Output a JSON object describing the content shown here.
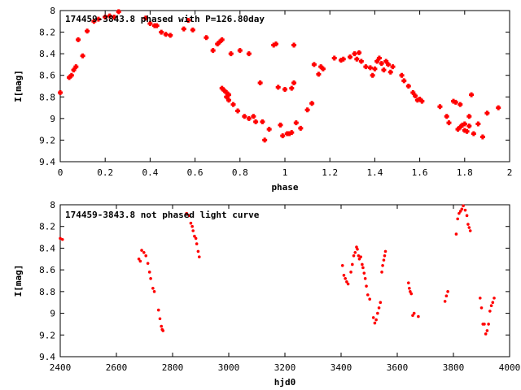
{
  "chart_data": [
    {
      "type": "scatter",
      "title": "174459-3843.8 phased with P=126.80day",
      "xlabel": "phase",
      "ylabel": "I[mag]",
      "xlim": [
        0,
        2
      ],
      "ylim": [
        9.4,
        8
      ],
      "y_inverted": true,
      "grid": false,
      "x_ticks": [
        0,
        0.2,
        0.4,
        0.6,
        0.8,
        1,
        1.2,
        1.4,
        1.6,
        1.8,
        2
      ],
      "x_tick_labels": [
        "0",
        "0.2",
        "0.4",
        "0.6",
        "0.8",
        "1",
        "1.2",
        "1.4",
        "1.6",
        "1.8",
        "2"
      ],
      "y_ticks": [
        8,
        8.2,
        8.4,
        8.6,
        8.8,
        9,
        9.2,
        9.4
      ],
      "y_tick_labels": [
        "8",
        "8.2",
        "8.4",
        "8.6",
        "8.8",
        "9",
        "9.2",
        "9.4"
      ],
      "marker_color": "#ff0000",
      "marker": "plus",
      "points": [
        [
          0.0,
          8.76
        ],
        [
          0.04,
          8.62
        ],
        [
          0.05,
          8.6
        ],
        [
          0.06,
          8.55
        ],
        [
          0.07,
          8.52
        ],
        [
          0.08,
          8.27
        ],
        [
          0.1,
          8.42
        ],
        [
          0.12,
          8.19
        ],
        [
          0.15,
          8.1
        ],
        [
          0.17,
          8.08
        ],
        [
          0.2,
          8.06
        ],
        [
          0.22,
          8.05
        ],
        [
          0.24,
          8.06
        ],
        [
          0.26,
          8.01
        ],
        [
          0.38,
          8.07
        ],
        [
          0.4,
          8.12
        ],
        [
          0.42,
          8.14
        ],
        [
          0.43,
          8.14
        ],
        [
          0.45,
          8.2
        ],
        [
          0.47,
          8.22
        ],
        [
          0.49,
          8.23
        ],
        [
          0.55,
          8.17
        ],
        [
          0.57,
          8.09
        ],
        [
          0.59,
          8.18
        ],
        [
          0.65,
          8.25
        ],
        [
          0.68,
          8.37
        ],
        [
          0.7,
          8.31
        ],
        [
          0.71,
          8.29
        ],
        [
          0.72,
          8.27
        ],
        [
          0.72,
          8.72
        ],
        [
          0.73,
          8.74
        ],
        [
          0.74,
          8.76
        ],
        [
          0.74,
          8.8
        ],
        [
          0.75,
          8.78
        ],
        [
          0.75,
          8.83
        ],
        [
          0.76,
          8.4
        ],
        [
          0.77,
          8.87
        ],
        [
          0.79,
          8.93
        ],
        [
          0.8,
          8.37
        ],
        [
          0.82,
          8.98
        ],
        [
          0.84,
          8.4
        ],
        [
          0.84,
          9.0
        ],
        [
          0.86,
          8.98
        ],
        [
          0.87,
          9.03
        ],
        [
          0.89,
          8.67
        ],
        [
          0.9,
          9.03
        ],
        [
          0.91,
          9.2
        ],
        [
          0.93,
          9.1
        ],
        [
          0.95,
          8.32
        ],
        [
          0.96,
          8.31
        ],
        [
          0.97,
          8.71
        ],
        [
          0.98,
          9.06
        ],
        [
          0.99,
          9.16
        ],
        [
          1.0,
          8.73
        ],
        [
          1.01,
          9.14
        ],
        [
          1.02,
          9.14
        ],
        [
          1.03,
          9.13
        ],
        [
          1.03,
          8.72
        ],
        [
          1.04,
          8.67
        ],
        [
          1.04,
          8.32
        ],
        [
          1.05,
          9.04
        ],
        [
          1.07,
          9.09
        ],
        [
          1.1,
          8.92
        ],
        [
          1.12,
          8.86
        ],
        [
          1.13,
          8.5
        ],
        [
          1.15,
          8.59
        ],
        [
          1.16,
          8.52
        ],
        [
          1.17,
          8.54
        ],
        [
          1.22,
          8.44
        ],
        [
          1.25,
          8.46
        ],
        [
          1.26,
          8.45
        ],
        [
          1.29,
          8.43
        ],
        [
          1.31,
          8.4
        ],
        [
          1.32,
          8.45
        ],
        [
          1.33,
          8.39
        ],
        [
          1.34,
          8.47
        ],
        [
          1.36,
          8.52
        ],
        [
          1.38,
          8.53
        ],
        [
          1.39,
          8.6
        ],
        [
          1.4,
          8.54
        ],
        [
          1.41,
          8.47
        ],
        [
          1.42,
          8.44
        ],
        [
          1.43,
          8.49
        ],
        [
          1.44,
          8.55
        ],
        [
          1.45,
          8.47
        ],
        [
          1.46,
          8.5
        ],
        [
          1.47,
          8.57
        ],
        [
          1.48,
          8.52
        ],
        [
          1.52,
          8.6
        ],
        [
          1.53,
          8.65
        ],
        [
          1.55,
          8.7
        ],
        [
          1.57,
          8.76
        ],
        [
          1.58,
          8.79
        ],
        [
          1.59,
          8.83
        ],
        [
          1.6,
          8.82
        ],
        [
          1.61,
          8.84
        ],
        [
          1.69,
          8.89
        ],
        [
          1.72,
          8.98
        ],
        [
          1.73,
          9.04
        ],
        [
          1.75,
          8.84
        ],
        [
          1.76,
          8.85
        ],
        [
          1.77,
          9.1
        ],
        [
          1.78,
          9.08
        ],
        [
          1.78,
          8.87
        ],
        [
          1.79,
          9.06
        ],
        [
          1.8,
          9.05
        ],
        [
          1.8,
          9.11
        ],
        [
          1.81,
          9.12
        ],
        [
          1.82,
          9.07
        ],
        [
          1.82,
          8.98
        ],
        [
          1.83,
          8.78
        ],
        [
          1.84,
          9.14
        ],
        [
          1.86,
          9.05
        ],
        [
          1.88,
          9.17
        ],
        [
          1.9,
          8.95
        ],
        [
          1.95,
          8.9
        ]
      ]
    },
    {
      "type": "scatter",
      "title": "174459-3843.8 not phased light curve",
      "xlabel": "hjd0",
      "ylabel": "I[mag]",
      "xlim": [
        2400,
        4000
      ],
      "ylim": [
        9.4,
        8
      ],
      "y_inverted": true,
      "grid": false,
      "x_ticks": [
        2400,
        2600,
        2800,
        3000,
        3200,
        3400,
        3600,
        3800,
        4000
      ],
      "x_tick_labels": [
        "2400",
        "2600",
        "2800",
        "3000",
        "3200",
        "3400",
        "3600",
        "3800",
        "4000"
      ],
      "y_ticks": [
        8,
        8.2,
        8.4,
        8.6,
        8.8,
        9,
        9.2,
        9.4
      ],
      "y_tick_labels": [
        "8",
        "8.2",
        "8.4",
        "8.6",
        "8.8",
        "9",
        "9.2",
        "9.4"
      ],
      "marker_color": "#ff0000",
      "marker": "dot",
      "points": [
        [
          2400,
          8.31
        ],
        [
          2408,
          8.32
        ],
        [
          2680,
          8.5
        ],
        [
          2685,
          8.52
        ],
        [
          2690,
          8.42
        ],
        [
          2698,
          8.44
        ],
        [
          2705,
          8.47
        ],
        [
          2712,
          8.54
        ],
        [
          2718,
          8.62
        ],
        [
          2722,
          8.68
        ],
        [
          2730,
          8.77
        ],
        [
          2735,
          8.8
        ],
        [
          2750,
          8.97
        ],
        [
          2755,
          9.05
        ],
        [
          2760,
          9.12
        ],
        [
          2763,
          9.15
        ],
        [
          2766,
          9.16
        ],
        [
          2850,
          8.08
        ],
        [
          2860,
          8.1
        ],
        [
          2865,
          8.17
        ],
        [
          2870,
          8.2
        ],
        [
          2873,
          8.24
        ],
        [
          2878,
          8.29
        ],
        [
          2883,
          8.31
        ],
        [
          2886,
          8.36
        ],
        [
          2891,
          8.43
        ],
        [
          2895,
          8.48
        ],
        [
          3405,
          8.56
        ],
        [
          3410,
          8.65
        ],
        [
          3415,
          8.68
        ],
        [
          3420,
          8.71
        ],
        [
          3425,
          8.73
        ],
        [
          3435,
          8.62
        ],
        [
          3440,
          8.55
        ],
        [
          3445,
          8.47
        ],
        [
          3450,
          8.44
        ],
        [
          3455,
          8.39
        ],
        [
          3458,
          8.41
        ],
        [
          3462,
          8.47
        ],
        [
          3465,
          8.5
        ],
        [
          3470,
          8.48
        ],
        [
          3475,
          8.55
        ],
        [
          3478,
          8.58
        ],
        [
          3482,
          8.63
        ],
        [
          3486,
          8.68
        ],
        [
          3490,
          8.75
        ],
        [
          3495,
          8.83
        ],
        [
          3502,
          8.87
        ],
        [
          3515,
          9.04
        ],
        [
          3520,
          9.09
        ],
        [
          3525,
          9.06
        ],
        [
          3530,
          9.0
        ],
        [
          3535,
          8.95
        ],
        [
          3540,
          8.9
        ],
        [
          3545,
          8.62
        ],
        [
          3548,
          8.56
        ],
        [
          3552,
          8.51
        ],
        [
          3555,
          8.47
        ],
        [
          3558,
          8.43
        ],
        [
          3640,
          8.72
        ],
        [
          3643,
          8.77
        ],
        [
          3646,
          8.8
        ],
        [
          3650,
          8.82
        ],
        [
          3655,
          9.02
        ],
        [
          3660,
          9.0
        ],
        [
          3675,
          9.03
        ],
        [
          3770,
          8.89
        ],
        [
          3775,
          8.84
        ],
        [
          3780,
          8.8
        ],
        [
          3810,
          8.27
        ],
        [
          3815,
          8.13
        ],
        [
          3820,
          8.08
        ],
        [
          3825,
          8.06
        ],
        [
          3830,
          8.04
        ],
        [
          3835,
          8.01
        ],
        [
          3842,
          8.05
        ],
        [
          3848,
          8.1
        ],
        [
          3852,
          8.18
        ],
        [
          3856,
          8.21
        ],
        [
          3860,
          8.24
        ],
        [
          3895,
          8.86
        ],
        [
          3900,
          8.95
        ],
        [
          3905,
          9.1
        ],
        [
          3910,
          9.1
        ],
        [
          3915,
          9.19
        ],
        [
          3920,
          9.16
        ],
        [
          3925,
          9.1
        ],
        [
          3930,
          8.98
        ],
        [
          3935,
          8.93
        ],
        [
          3940,
          8.9
        ],
        [
          3945,
          8.86
        ]
      ]
    }
  ]
}
